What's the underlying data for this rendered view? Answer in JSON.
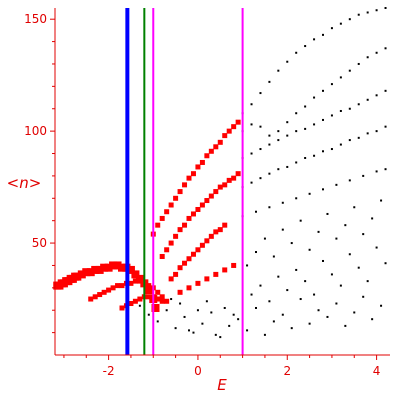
{
  "chart_data": {
    "type": "scatter",
    "title": "",
    "xlabel": "E",
    "ylabel": "<n>",
    "xlim": [
      -3.2,
      4.3
    ],
    "ylim": [
      0,
      155
    ],
    "xticks": [
      {
        "value": -2,
        "label": "-2"
      },
      {
        "value": 0,
        "label": "0"
      },
      {
        "value": 2,
        "label": "2"
      },
      {
        "value": 4,
        "label": "4"
      }
    ],
    "yticks": [
      {
        "value": 50,
        "label": "50"
      },
      {
        "value": 100,
        "label": "100"
      },
      {
        "value": 150,
        "label": "150"
      }
    ],
    "grid": false,
    "axis_color": "#e00000",
    "vertical_lines": [
      {
        "x": -1.58,
        "color": "#0000ff",
        "width": "thick"
      },
      {
        "x": -1.2,
        "color": "#008000",
        "width": "thin"
      },
      {
        "x": -1.0,
        "color": "#ff00ff",
        "width": "thin"
      },
      {
        "x": 1.0,
        "color": "#ff00ff",
        "width": "thin"
      }
    ],
    "series": [
      {
        "color": "#ff0000",
        "marker": "square-large",
        "x": [
          -3.15,
          -3.1,
          -3.05,
          -3.0,
          -2.95,
          -2.9,
          -2.85,
          -2.8,
          -2.75,
          -2.7,
          -2.6,
          -2.5,
          -2.4,
          -2.3,
          -2.2,
          -2.1,
          -2.0,
          -1.9,
          -1.8,
          -1.7,
          -1.6,
          -1.5,
          -1.4,
          -1.3,
          -1.2,
          -1.1,
          -1.0,
          -0.95
        ],
        "y": [
          31,
          31,
          32,
          32,
          33,
          33,
          34,
          34,
          35,
          35,
          36,
          37,
          37,
          38,
          38,
          39,
          39,
          40,
          40,
          39,
          39,
          38,
          36,
          34,
          32,
          29,
          25,
          21
        ]
      },
      {
        "color": "#ff0000",
        "marker": "square",
        "x": [
          -2.4,
          -2.3,
          -2.2,
          -2.1,
          -2.0,
          -1.9,
          -1.8,
          -1.7,
          -1.6,
          -1.5,
          -1.4,
          -1.3,
          -1.2,
          -1.1,
          -1.0,
          -0.9,
          -0.8,
          -0.7
        ],
        "y": [
          25,
          26,
          27,
          28,
          29,
          30,
          31,
          31,
          32,
          32,
          33,
          33,
          32,
          31,
          30,
          28,
          26,
          24
        ]
      },
      {
        "color": "#ff0000",
        "marker": "square",
        "x": [
          -1.7,
          -1.6,
          -1.5,
          -1.4,
          -1.3,
          -1.2,
          -1.1,
          -1.0,
          -0.9,
          -0.8
        ],
        "y": [
          21,
          22,
          23,
          24,
          25,
          26,
          26,
          26,
          25,
          24
        ]
      },
      {
        "color": "#ff0000",
        "marker": "square",
        "x": [
          -1.0,
          -0.9,
          -0.8,
          -0.7,
          -0.6,
          -0.5,
          -0.4,
          -0.3,
          -0.2,
          -0.1,
          0.0,
          0.1,
          0.2,
          0.3,
          0.4,
          0.5,
          0.6,
          0.7,
          0.8,
          0.9
        ],
        "y": [
          54,
          58,
          61,
          64,
          67,
          70,
          73,
          76,
          79,
          81,
          84,
          86,
          89,
          91,
          93,
          95,
          98,
          100,
          102,
          104
        ]
      },
      {
        "color": "#ff0000",
        "marker": "square",
        "x": [
          -0.8,
          -0.7,
          -0.6,
          -0.5,
          -0.4,
          -0.3,
          -0.2,
          -0.1,
          0.0,
          0.1,
          0.2,
          0.3,
          0.4,
          0.5,
          0.6,
          0.7,
          0.8,
          0.9
        ],
        "y": [
          44,
          47,
          50,
          53,
          56,
          58,
          61,
          63,
          65,
          67,
          69,
          71,
          73,
          75,
          76,
          78,
          79,
          81
        ]
      },
      {
        "color": "#ff0000",
        "marker": "square",
        "x": [
          -0.6,
          -0.5,
          -0.4,
          -0.3,
          -0.2,
          -0.1,
          0.0,
          0.1,
          0.2,
          0.3,
          0.4,
          0.5,
          0.6
        ],
        "y": [
          34,
          36,
          39,
          41,
          43,
          45,
          47,
          49,
          51,
          53,
          55,
          56,
          58
        ]
      },
      {
        "color": "#ff0000",
        "marker": "square",
        "x": [
          -0.4,
          -0.2,
          0.0,
          0.2,
          0.4,
          0.6,
          0.8
        ],
        "y": [
          28,
          30,
          32,
          34,
          36,
          38,
          40
        ]
      },
      {
        "color": "#000000",
        "marker": "dot",
        "x": [
          1.0,
          1.2,
          1.4,
          1.6,
          1.8,
          2.0,
          2.2,
          2.4,
          2.6,
          2.8,
          3.0,
          3.2,
          3.4,
          3.6,
          3.8,
          4.0,
          4.2
        ],
        "y": [
          108,
          112,
          117,
          122,
          127,
          131,
          135,
          138,
          141,
          143,
          146,
          148,
          150,
          152,
          153,
          154,
          155
        ]
      },
      {
        "color": "#000000",
        "marker": "dot",
        "x": [
          1.0,
          1.2,
          1.4,
          1.6,
          1.8,
          2.0,
          2.2,
          2.4,
          2.6,
          2.8,
          3.0,
          3.2,
          3.4,
          3.6,
          3.8,
          4.0,
          4.2
        ],
        "y": [
          100,
          103,
          102,
          98,
          100,
          104,
          108,
          111,
          115,
          118,
          121,
          124,
          127,
          130,
          133,
          135,
          137
        ]
      },
      {
        "color": "#000000",
        "marker": "dot",
        "x": [
          1.0,
          1.2,
          1.4,
          1.6,
          1.8,
          2.0,
          2.2,
          2.4,
          2.6,
          2.8,
          3.0,
          3.2,
          3.4,
          3.6,
          3.8,
          4.0,
          4.2
        ],
        "y": [
          88,
          90,
          92,
          94,
          96,
          98,
          100,
          101,
          103,
          105,
          107,
          109,
          110,
          112,
          114,
          116,
          118
        ]
      },
      {
        "color": "#000000",
        "marker": "dot",
        "x": [
          1.0,
          1.2,
          1.4,
          1.6,
          1.8,
          2.0,
          2.2,
          2.4,
          2.6,
          2.8,
          3.0,
          3.2,
          3.4,
          3.6,
          3.8,
          4.0,
          4.2
        ],
        "y": [
          75,
          77,
          79,
          81,
          83,
          84,
          86,
          88,
          89,
          91,
          92,
          94,
          96,
          97,
          99,
          100,
          102
        ]
      },
      {
        "color": "#000000",
        "marker": "dot",
        "x": [
          1.0,
          1.3,
          1.6,
          1.9,
          2.2,
          2.5,
          2.8,
          3.1,
          3.4,
          3.7,
          4.0,
          4.2
        ],
        "y": [
          62,
          64,
          66,
          68,
          70,
          72,
          74,
          76,
          78,
          80,
          82,
          83
        ]
      },
      {
        "color": "#000000",
        "marker": "dot",
        "x": [
          -1.3,
          -1.1,
          -0.9,
          -0.7,
          -0.5,
          -0.3,
          -0.1,
          0.1,
          0.3,
          0.5,
          0.7,
          0.9,
          1.1,
          1.3,
          1.5,
          1.7,
          1.9,
          2.1,
          2.3,
          2.5,
          2.7,
          2.9,
          3.1,
          3.3,
          3.5,
          3.7,
          3.9,
          4.1
        ],
        "y": [
          22,
          18,
          15,
          20,
          12,
          17,
          10,
          14,
          19,
          8,
          13,
          16,
          11,
          21,
          9,
          15,
          18,
          12,
          25,
          14,
          20,
          17,
          23,
          13,
          19,
          26,
          16,
          22
        ]
      },
      {
        "color": "#000000",
        "marker": "dot",
        "x": [
          -0.6,
          -0.4,
          -0.2,
          0.0,
          0.2,
          0.4,
          0.6,
          0.8,
          1.2,
          1.4,
          1.6,
          1.8,
          2.0,
          2.2,
          2.4,
          2.6,
          2.8,
          3.0,
          3.2,
          3.4,
          3.6,
          3.8,
          4.0,
          4.2
        ],
        "y": [
          25,
          23,
          11,
          20,
          24,
          9,
          21,
          18,
          27,
          31,
          24,
          35,
          29,
          38,
          33,
          27,
          42,
          36,
          31,
          45,
          39,
          33,
          48,
          41
        ]
      },
      {
        "color": "#000000",
        "marker": "dot",
        "x": [
          1.1,
          1.3,
          1.5,
          1.7,
          1.9,
          2.1,
          2.3,
          2.5,
          2.7,
          2.9,
          3.1,
          3.3,
          3.5,
          3.7,
          3.9,
          4.1
        ],
        "y": [
          40,
          46,
          52,
          44,
          56,
          50,
          60,
          47,
          55,
          63,
          52,
          58,
          66,
          54,
          61,
          69
        ]
      }
    ]
  }
}
